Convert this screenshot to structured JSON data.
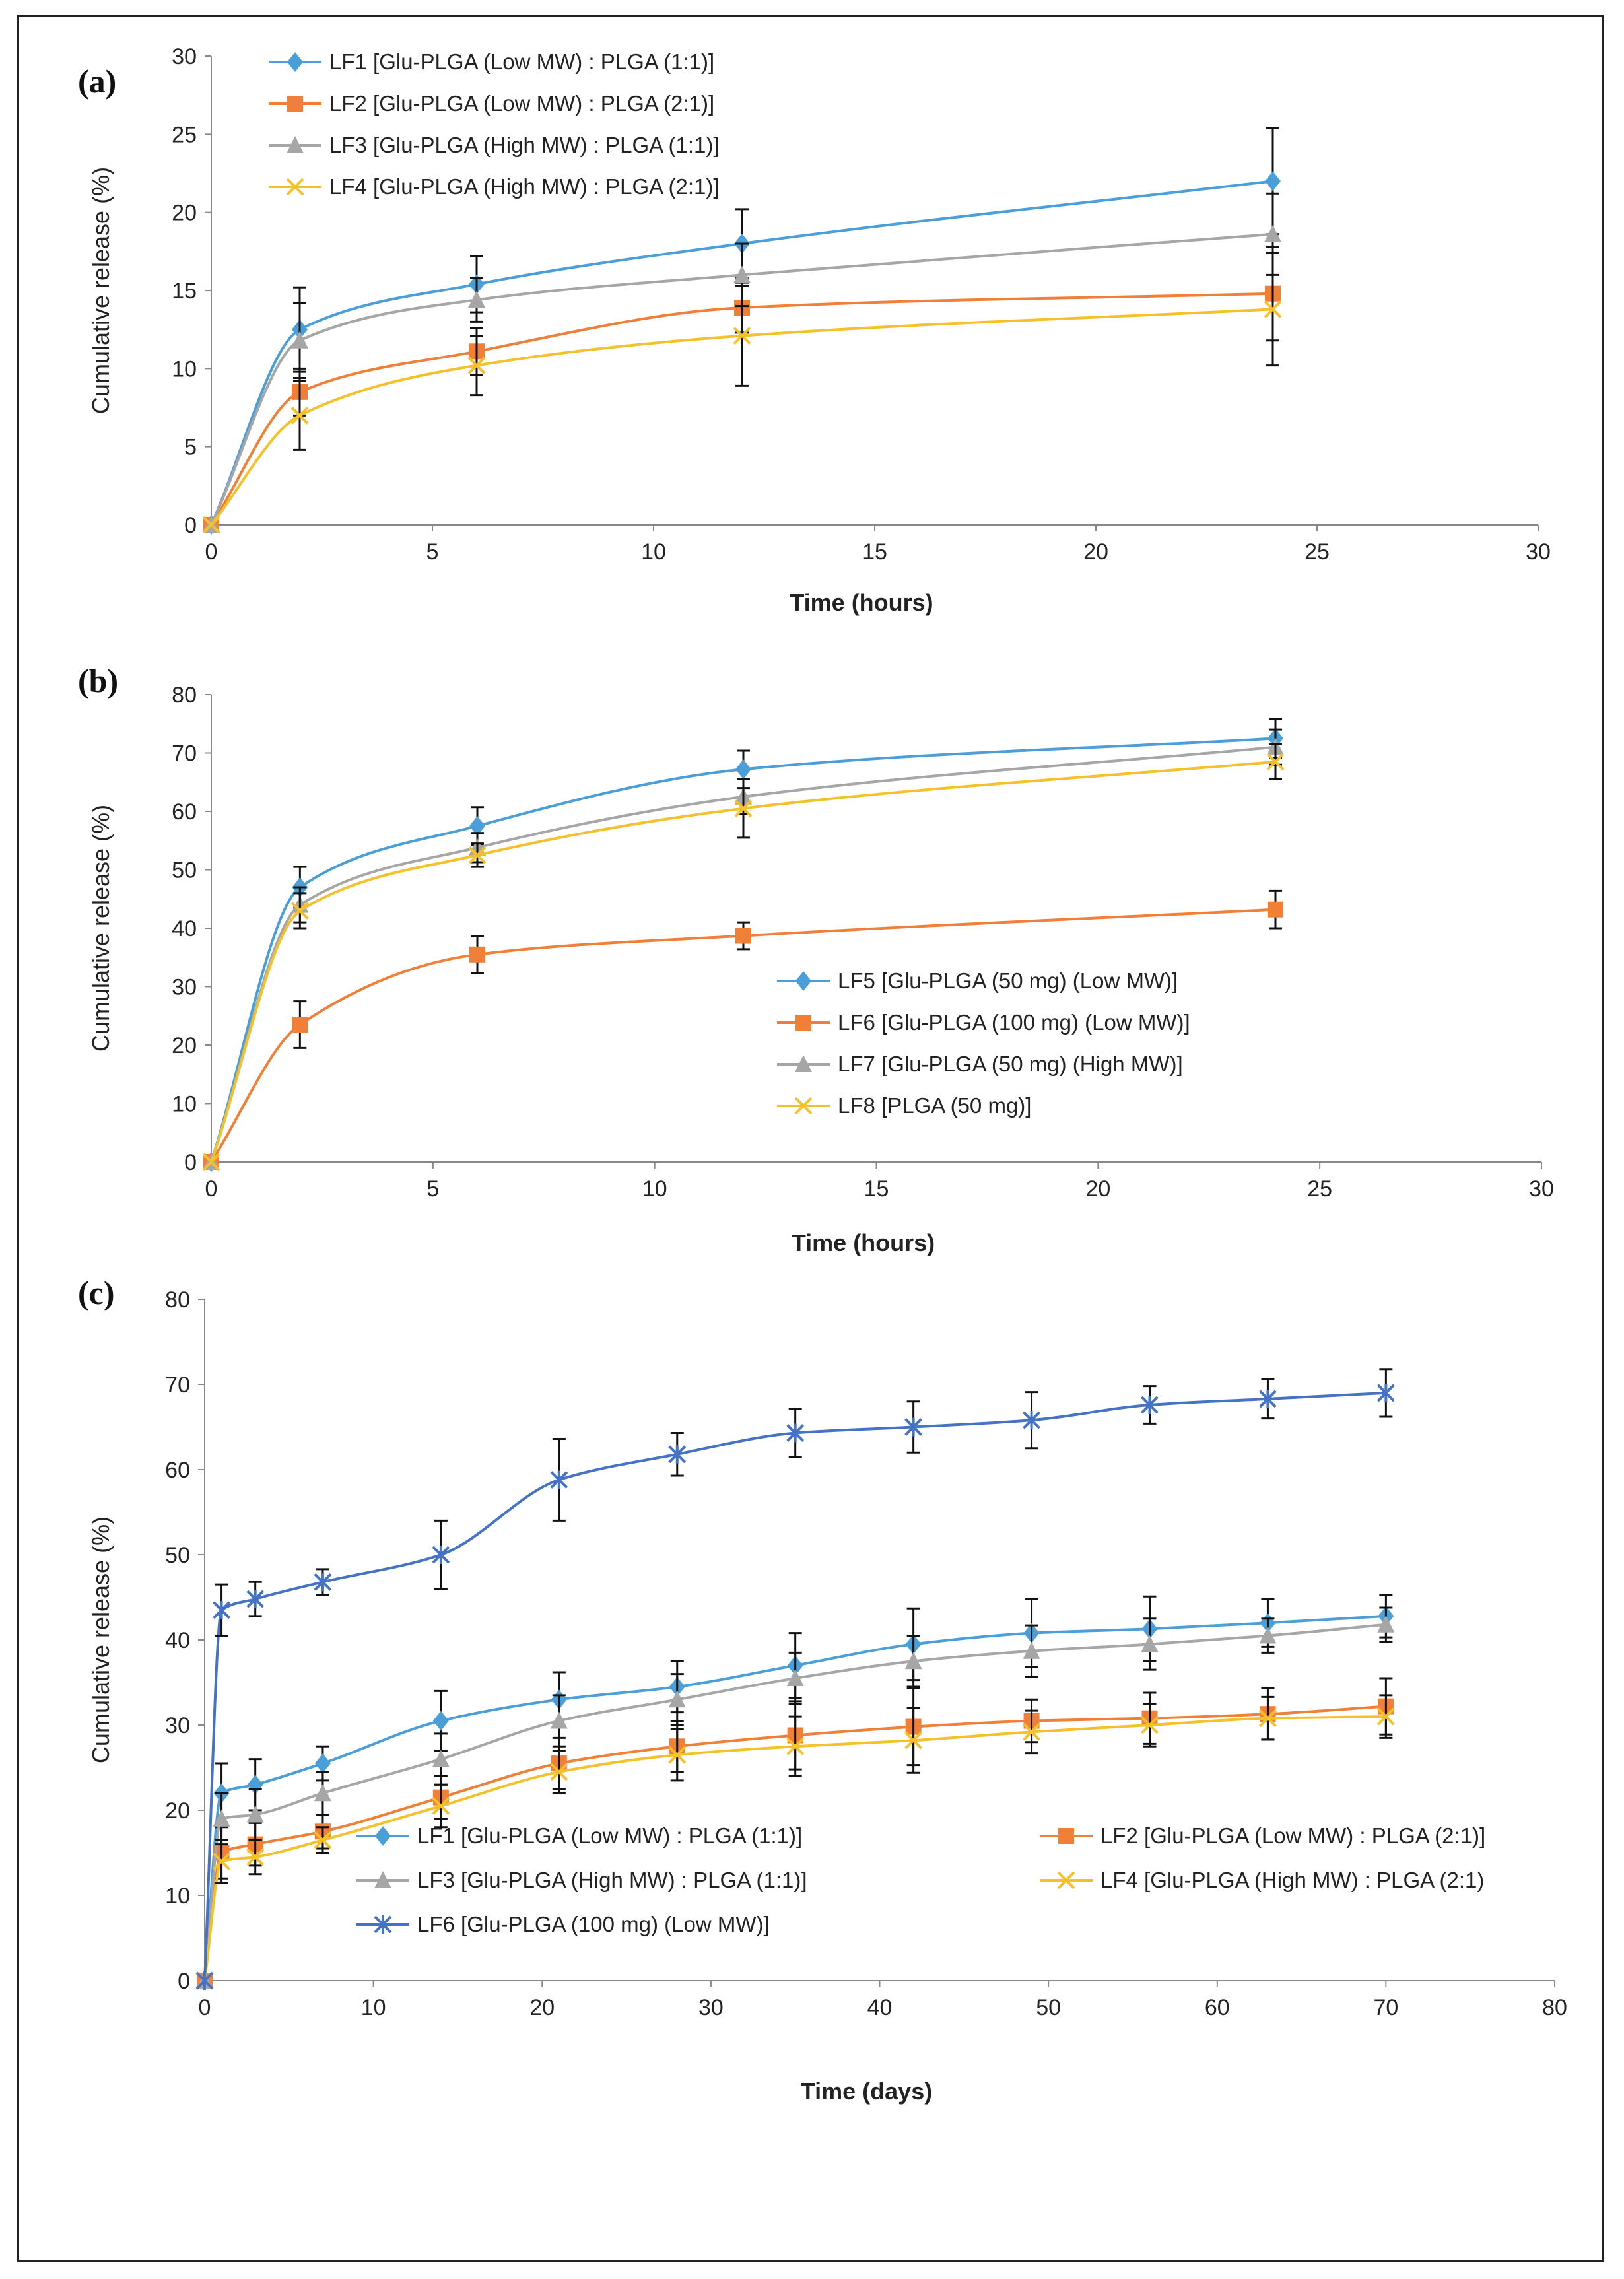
{
  "chart_data": [
    {
      "panel_label": "(a)",
      "type": "line",
      "xlabel": "Time (hours)",
      "ylabel": "Cumulative release (%)",
      "xlim": [
        0,
        30
      ],
      "ylim": [
        0,
        30
      ],
      "xticks": [
        0,
        5,
        10,
        15,
        20,
        25,
        30
      ],
      "yticks": [
        0,
        5,
        10,
        15,
        20,
        25,
        30
      ],
      "legend_position": "top-left",
      "legend_columns": 1,
      "series": [
        {
          "name": "LF1 [Glu-PLGA (Low MW) : PLGA (1:1)]",
          "color": "#4a9fd8",
          "marker": "diamond",
          "x": [
            0,
            2,
            6,
            12,
            24
          ],
          "y": [
            0,
            12.5,
            15.4,
            18.0,
            22.0
          ],
          "err": [
            0,
            2.7,
            1.8,
            2.2,
            3.4
          ]
        },
        {
          "name": "LF2 [Glu-PLGA (Low MW) : PLGA (2:1)]",
          "color": "#f07f38",
          "marker": "square",
          "x": [
            0,
            2,
            6,
            12,
            24
          ],
          "y": [
            0,
            8.5,
            11.1,
            13.9,
            14.8
          ],
          "err": [
            0,
            1.5,
            1.5,
            1.6,
            3.0
          ]
        },
        {
          "name": "LF3 [Glu-PLGA (High MW) : PLGA (1:1)]",
          "color": "#a6a6a6",
          "marker": "triangle",
          "x": [
            0,
            2,
            6,
            12,
            24
          ],
          "y": [
            0,
            11.8,
            14.4,
            16.0,
            18.6
          ],
          "err": [
            0,
            2.4,
            1.4,
            2.0,
            2.6
          ]
        },
        {
          "name": "LF4 [Glu-PLGA (High MW) : PLGA (2:1)]",
          "color": "#f5c12b",
          "marker": "x",
          "x": [
            0,
            2,
            6,
            12,
            24
          ],
          "y": [
            0,
            7.0,
            10.2,
            12.1,
            13.8
          ],
          "err": [
            0,
            2.2,
            1.9,
            3.2,
            3.6
          ]
        }
      ]
    },
    {
      "panel_label": "(b)",
      "type": "line",
      "xlabel": "Time (hours)",
      "ylabel": "Cumulative release (%)",
      "xlim": [
        0,
        30
      ],
      "ylim": [
        0,
        80
      ],
      "xticks": [
        0,
        5,
        10,
        15,
        20,
        25,
        30
      ],
      "yticks": [
        0,
        10,
        20,
        30,
        40,
        50,
        60,
        70,
        80
      ],
      "legend_position": "center-right",
      "legend_columns": 1,
      "series": [
        {
          "name": "LF5 [Glu-PLGA (50 mg) (Low MW)]",
          "color": "#4a9fd8",
          "marker": "diamond",
          "x": [
            0,
            2,
            6,
            12,
            24
          ],
          "y": [
            0,
            47,
            57.5,
            67.2,
            72.5
          ],
          "err": [
            0,
            3.5,
            3.2,
            3.2,
            3.3
          ]
        },
        {
          "name": "LF6 [Glu-PLGA (100 mg) (Low MW)]",
          "color": "#f07f38",
          "marker": "square",
          "x": [
            0,
            2,
            6,
            12,
            24
          ],
          "y": [
            0,
            23.5,
            35.5,
            38.7,
            43.2
          ],
          "err": [
            0,
            4.0,
            3.2,
            2.3,
            3.2
          ]
        },
        {
          "name": "LF7 [Glu-PLGA (50 mg) (High MW)]",
          "color": "#a6a6a6",
          "marker": "triangle",
          "x": [
            0,
            2,
            6,
            12,
            24
          ],
          "y": [
            0,
            44,
            53.8,
            62.5,
            71.0
          ],
          "err": [
            0,
            3.0,
            2.5,
            3.0,
            3.0
          ]
        },
        {
          "name": "LF8 [PLGA (50 mg)]",
          "color": "#f5c12b",
          "marker": "x",
          "x": [
            0,
            2,
            6,
            12,
            24
          ],
          "y": [
            0,
            43,
            52.5,
            60.5,
            68.5
          ],
          "err": [
            0,
            3.0,
            2.0,
            5.0,
            3.0
          ]
        }
      ]
    },
    {
      "panel_label": "(c)",
      "type": "line",
      "xlabel": "Time (days)",
      "ylabel": "Cumulative release (%)",
      "xlim": [
        0,
        80
      ],
      "ylim": [
        0,
        80
      ],
      "xticks": [
        0,
        10,
        20,
        30,
        40,
        50,
        60,
        70,
        80
      ],
      "yticks": [
        0,
        10,
        20,
        30,
        40,
        50,
        60,
        70,
        80
      ],
      "legend_position": "bottom",
      "legend_columns": 2,
      "series": [
        {
          "name": "LF1 [Glu-PLGA (Low MW) : PLGA (1:1)]",
          "color": "#4a9fd8",
          "marker": "diamond",
          "x": [
            0,
            1,
            3,
            7,
            14,
            21,
            28,
            35,
            42,
            49,
            56,
            63,
            70
          ],
          "y": [
            0,
            22,
            23,
            25.5,
            30.5,
            33,
            34.5,
            37,
            39.5,
            40.8,
            41.3,
            42,
            42.8
          ],
          "err": [
            0,
            3.5,
            3.0,
            2.0,
            3.5,
            3.2,
            3.0,
            3.8,
            4.2,
            4.0,
            3.8,
            2.8,
            2.5
          ]
        },
        {
          "name": "LF2 [Glu-PLGA (Low MW) : PLGA (2:1)]",
          "color": "#f07f38",
          "marker": "square",
          "x": [
            0,
            1,
            3,
            7,
            14,
            21,
            28,
            35,
            42,
            49,
            56,
            63,
            70
          ],
          "y": [
            0,
            15,
            16,
            17.5,
            21.5,
            25.5,
            27.5,
            28.8,
            29.8,
            30.5,
            30.8,
            31.3,
            32.2
          ],
          "err": [
            0,
            3.0,
            2.5,
            2.0,
            2.5,
            3.0,
            3.0,
            4.0,
            4.5,
            2.5,
            3.0,
            3.0,
            3.3
          ]
        },
        {
          "name": "LF3 [Glu-PLGA (High MW) : PLGA (1:1)]",
          "color": "#a6a6a6",
          "marker": "triangle",
          "x": [
            0,
            1,
            3,
            7,
            14,
            21,
            28,
            35,
            42,
            49,
            56,
            63,
            70
          ],
          "y": [
            0,
            19,
            19.5,
            22,
            26,
            30.5,
            33,
            35.5,
            37.5,
            38.7,
            39.5,
            40.5,
            41.8
          ],
          "err": [
            0,
            3.0,
            3.0,
            2.5,
            3.0,
            3.0,
            3.0,
            3.0,
            3.0,
            3.0,
            3.0,
            2.0,
            2.0
          ]
        },
        {
          "name": "LF4 [Glu-PLGA (High MW) : PLGA (2:1)",
          "color": "#f5c12b",
          "marker": "x",
          "x": [
            0,
            1,
            3,
            7,
            14,
            21,
            28,
            35,
            42,
            49,
            56,
            63,
            70
          ],
          "y": [
            0,
            14,
            14.5,
            16.5,
            20.5,
            24.5,
            26.5,
            27.5,
            28.2,
            29.2,
            30,
            30.8,
            31
          ],
          "err": [
            0,
            2.5,
            2.0,
            1.5,
            2.5,
            2.5,
            3.0,
            3.5,
            3.8,
            2.5,
            2.5,
            2.5,
            2.5
          ]
        },
        {
          "name": "LF6 [Glu-PLGA (100 mg) (Low MW)]",
          "color": "#4472c4",
          "marker": "star",
          "x": [
            0,
            1,
            3,
            7,
            14,
            21,
            28,
            35,
            42,
            49,
            56,
            63,
            70
          ],
          "y": [
            0,
            43.5,
            44.8,
            46.8,
            50,
            58.8,
            61.8,
            64.3,
            65,
            65.8,
            67.6,
            68.3,
            69
          ],
          "err": [
            0,
            3.0,
            2.0,
            1.5,
            4.0,
            4.8,
            2.5,
            2.8,
            3.0,
            3.3,
            2.2,
            2.3,
            2.8
          ]
        }
      ]
    }
  ]
}
